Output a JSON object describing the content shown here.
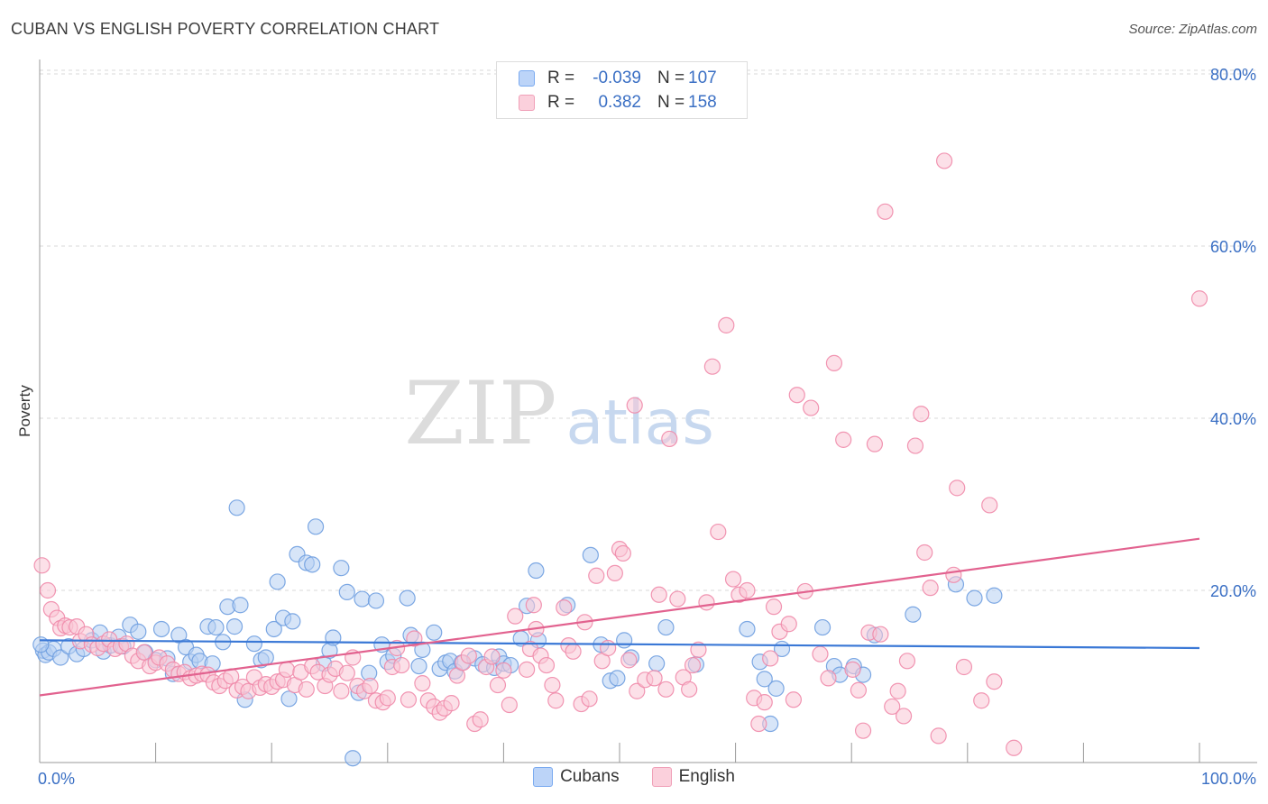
{
  "header": {
    "title": "CUBAN VS ENGLISH POVERTY CORRELATION CHART",
    "source": "Source: ZipAtlas.com"
  },
  "watermark": {
    "part1": "ZIP",
    "part2": "atlas"
  },
  "legend": {
    "rows": [
      {
        "r_label": "R =",
        "r_value": "-0.039",
        "n_label": "N =",
        "n_value": "107",
        "color": "#7aaaf0",
        "fill": "#bcd4f8"
      },
      {
        "r_label": "R =",
        "r_value": "0.382",
        "n_label": "N =",
        "n_value": "158",
        "color": "#f0a0b8",
        "fill": "#fbd0dc"
      }
    ]
  },
  "bottom_legend": {
    "cubans": "Cubans",
    "english": "English"
  },
  "chart_data": {
    "type": "scatter",
    "title": "CUBAN VS ENGLISH POVERTY CORRELATION CHART",
    "ylabel": "Poverty",
    "xlabel": "",
    "xlim": [
      0,
      100
    ],
    "ylim": [
      0,
      82
    ],
    "x_tick_labels": [
      "0.0%",
      "100.0%"
    ],
    "y_ticks": [
      20,
      40,
      60,
      80
    ],
    "y_tick_labels": [
      "20.0%",
      "40.0%",
      "60.0%",
      "80.0%"
    ],
    "grid": true,
    "series": [
      {
        "name": "Cubans",
        "color": "#6f9fe0",
        "fill": "#b7cff3",
        "line_color": "#3a78d6",
        "trend": {
          "x": [
            0,
            100
          ],
          "y": [
            14.2,
            13.3
          ]
        },
        "points": [
          [
            0.3,
            13.0
          ],
          [
            0.5,
            12.5
          ],
          [
            0.8,
            12.8
          ],
          [
            1.2,
            13.2
          ],
          [
            1.8,
            12.2
          ],
          [
            2.5,
            13.5
          ],
          [
            3.2,
            12.6
          ],
          [
            3.8,
            13.2
          ],
          [
            4.5,
            14.2
          ],
          [
            5.2,
            15.1
          ],
          [
            5.5,
            12.9
          ],
          [
            6.1,
            13.6
          ],
          [
            6.8,
            14.6
          ],
          [
            7.2,
            13.5
          ],
          [
            7.8,
            16.0
          ],
          [
            8.5,
            15.2
          ],
          [
            9.1,
            12.8
          ],
          [
            10.0,
            11.9
          ],
          [
            10.5,
            15.5
          ],
          [
            11.0,
            12.1
          ],
          [
            11.5,
            10.3
          ],
          [
            12.0,
            14.8
          ],
          [
            12.6,
            13.4
          ],
          [
            13.0,
            11.7
          ],
          [
            13.5,
            12.5
          ],
          [
            13.8,
            11.8
          ],
          [
            14.5,
            15.8
          ],
          [
            14.9,
            11.5
          ],
          [
            15.2,
            15.7
          ],
          [
            15.8,
            14.0
          ],
          [
            16.2,
            18.1
          ],
          [
            16.8,
            15.8
          ],
          [
            17.0,
            29.6
          ],
          [
            17.3,
            18.3
          ],
          [
            17.7,
            7.3
          ],
          [
            18.5,
            13.8
          ],
          [
            19.1,
            11.9
          ],
          [
            19.5,
            12.2
          ],
          [
            20.2,
            15.5
          ],
          [
            20.5,
            21.0
          ],
          [
            21.0,
            16.8
          ],
          [
            21.5,
            7.4
          ],
          [
            21.8,
            16.4
          ],
          [
            22.2,
            24.2
          ],
          [
            23.0,
            23.2
          ],
          [
            23.5,
            23.0
          ],
          [
            23.8,
            27.4
          ],
          [
            24.5,
            11.5
          ],
          [
            25.0,
            13.0
          ],
          [
            25.3,
            14.5
          ],
          [
            26.0,
            22.6
          ],
          [
            26.5,
            19.8
          ],
          [
            27.0,
            0.5
          ],
          [
            27.5,
            8.1
          ],
          [
            27.8,
            19.0
          ],
          [
            28.4,
            10.4
          ],
          [
            29.0,
            18.8
          ],
          [
            29.5,
            13.7
          ],
          [
            30.0,
            11.7
          ],
          [
            30.5,
            12.4
          ],
          [
            31.7,
            19.1
          ],
          [
            32.0,
            14.8
          ],
          [
            32.7,
            11.2
          ],
          [
            33.0,
            13.1
          ],
          [
            34.0,
            15.1
          ],
          [
            34.5,
            10.9
          ],
          [
            35.0,
            11.6
          ],
          [
            35.4,
            11.8
          ],
          [
            35.8,
            10.6
          ],
          [
            36.4,
            11.6
          ],
          [
            37.5,
            12.1
          ],
          [
            38.2,
            11.4
          ],
          [
            39.2,
            11.0
          ],
          [
            39.6,
            12.3
          ],
          [
            40.0,
            11.5
          ],
          [
            40.6,
            11.3
          ],
          [
            41.5,
            14.4
          ],
          [
            42.0,
            18.2
          ],
          [
            42.8,
            22.3
          ],
          [
            43.0,
            14.2
          ],
          [
            45.5,
            18.3
          ],
          [
            47.5,
            24.1
          ],
          [
            48.4,
            13.7
          ],
          [
            49.2,
            9.5
          ],
          [
            49.8,
            9.8
          ],
          [
            50.4,
            14.2
          ],
          [
            51.0,
            12.2
          ],
          [
            53.2,
            11.5
          ],
          [
            54.0,
            15.7
          ],
          [
            56.6,
            11.4
          ],
          [
            61.0,
            15.5
          ],
          [
            62.1,
            11.7
          ],
          [
            62.5,
            9.7
          ],
          [
            63.0,
            4.5
          ],
          [
            63.5,
            8.6
          ],
          [
            64.0,
            13.2
          ],
          [
            67.5,
            15.7
          ],
          [
            68.5,
            11.2
          ],
          [
            69.0,
            10.2
          ],
          [
            70.2,
            11.2
          ],
          [
            71.0,
            10.2
          ],
          [
            72.0,
            14.8
          ],
          [
            75.3,
            17.2
          ],
          [
            79.0,
            20.7
          ],
          [
            80.6,
            19.1
          ],
          [
            82.3,
            19.4
          ],
          [
            0.1,
            13.7
          ]
        ]
      },
      {
        "name": "English",
        "color": "#f08aaa",
        "fill": "#f9c6d5",
        "line_color": "#e2628f",
        "trend": {
          "x": [
            0,
            100
          ],
          "y": [
            7.8,
            26.0
          ]
        },
        "points": [
          [
            0.2,
            22.9
          ],
          [
            0.7,
            20.0
          ],
          [
            1.0,
            17.8
          ],
          [
            1.5,
            16.8
          ],
          [
            1.8,
            15.6
          ],
          [
            2.2,
            15.9
          ],
          [
            2.6,
            15.7
          ],
          [
            3.2,
            15.8
          ],
          [
            3.5,
            14.1
          ],
          [
            4.0,
            14.9
          ],
          [
            4.5,
            13.7
          ],
          [
            5.0,
            13.3
          ],
          [
            5.5,
            13.8
          ],
          [
            6.0,
            14.3
          ],
          [
            6.5,
            13.2
          ],
          [
            7.0,
            13.5
          ],
          [
            7.5,
            13.8
          ],
          [
            8.0,
            12.4
          ],
          [
            8.5,
            11.8
          ],
          [
            9.0,
            12.8
          ],
          [
            9.5,
            11.2
          ],
          [
            10.0,
            11.6
          ],
          [
            10.3,
            12.2
          ],
          [
            11.0,
            11.5
          ],
          [
            11.5,
            10.8
          ],
          [
            12.0,
            10.3
          ],
          [
            12.5,
            10.5
          ],
          [
            13.0,
            9.8
          ],
          [
            13.5,
            10.1
          ],
          [
            14.0,
            10.3
          ],
          [
            14.5,
            10.2
          ],
          [
            15.0,
            9.3
          ],
          [
            15.5,
            8.9
          ],
          [
            16.0,
            9.5
          ],
          [
            16.5,
            10.0
          ],
          [
            17.0,
            8.4
          ],
          [
            17.5,
            8.8
          ],
          [
            18.0,
            8.3
          ],
          [
            18.5,
            9.9
          ],
          [
            19.0,
            8.7
          ],
          [
            19.5,
            9.1
          ],
          [
            20.0,
            8.8
          ],
          [
            20.5,
            9.4
          ],
          [
            21.0,
            9.6
          ],
          [
            21.3,
            10.8
          ],
          [
            22.0,
            9.0
          ],
          [
            22.5,
            10.5
          ],
          [
            23.0,
            8.5
          ],
          [
            23.5,
            11.2
          ],
          [
            24.0,
            10.5
          ],
          [
            24.6,
            8.9
          ],
          [
            25.0,
            10.2
          ],
          [
            25.5,
            10.9
          ],
          [
            26.0,
            8.3
          ],
          [
            26.5,
            10.4
          ],
          [
            27.0,
            12.2
          ],
          [
            27.4,
            8.9
          ],
          [
            28.0,
            8.3
          ],
          [
            28.5,
            8.9
          ],
          [
            29.0,
            7.2
          ],
          [
            29.6,
            7.0
          ],
          [
            30.0,
            7.5
          ],
          [
            30.4,
            11.1
          ],
          [
            30.8,
            13.3
          ],
          [
            31.2,
            11.3
          ],
          [
            31.8,
            7.3
          ],
          [
            32.3,
            14.4
          ],
          [
            33.0,
            9.2
          ],
          [
            33.5,
            7.2
          ],
          [
            34.0,
            6.5
          ],
          [
            34.5,
            5.8
          ],
          [
            34.9,
            6.3
          ],
          [
            35.5,
            6.9
          ],
          [
            36.0,
            10.1
          ],
          [
            36.5,
            11.6
          ],
          [
            37.0,
            12.4
          ],
          [
            37.5,
            4.5
          ],
          [
            38.0,
            5.0
          ],
          [
            38.5,
            11.1
          ],
          [
            39.0,
            12.3
          ],
          [
            39.5,
            9.0
          ],
          [
            40.0,
            10.7
          ],
          [
            40.5,
            6.7
          ],
          [
            41.0,
            17.0
          ],
          [
            42.0,
            10.8
          ],
          [
            42.3,
            13.2
          ],
          [
            42.6,
            18.3
          ],
          [
            42.8,
            15.5
          ],
          [
            43.2,
            12.4
          ],
          [
            43.7,
            11.3
          ],
          [
            44.2,
            9.0
          ],
          [
            44.5,
            7.2
          ],
          [
            45.2,
            18.0
          ],
          [
            45.6,
            13.6
          ],
          [
            46.0,
            12.9
          ],
          [
            46.7,
            6.8
          ],
          [
            47.0,
            16.3
          ],
          [
            47.4,
            7.4
          ],
          [
            48.0,
            21.7
          ],
          [
            48.5,
            11.8
          ],
          [
            49.0,
            13.3
          ],
          [
            49.6,
            22.0
          ],
          [
            50.0,
            24.8
          ],
          [
            50.3,
            24.3
          ],
          [
            50.8,
            11.9
          ],
          [
            51.3,
            41.5
          ],
          [
            51.5,
            8.3
          ],
          [
            52.2,
            9.6
          ],
          [
            53.0,
            9.8
          ],
          [
            53.4,
            19.5
          ],
          [
            54.0,
            8.5
          ],
          [
            54.3,
            37.6
          ],
          [
            55.0,
            19.0
          ],
          [
            55.5,
            9.9
          ],
          [
            56.0,
            8.5
          ],
          [
            56.3,
            11.3
          ],
          [
            56.8,
            13.1
          ],
          [
            57.5,
            18.6
          ],
          [
            58.0,
            46.0
          ],
          [
            58.5,
            26.8
          ],
          [
            59.2,
            50.8
          ],
          [
            59.8,
            21.3
          ],
          [
            60.3,
            19.5
          ],
          [
            61.0,
            20.0
          ],
          [
            61.6,
            7.5
          ],
          [
            62.0,
            4.5
          ],
          [
            62.5,
            7.0
          ],
          [
            63.0,
            12.1
          ],
          [
            63.3,
            18.1
          ],
          [
            63.8,
            15.2
          ],
          [
            64.6,
            16.1
          ],
          [
            65.0,
            7.3
          ],
          [
            65.3,
            42.7
          ],
          [
            66.0,
            19.9
          ],
          [
            66.5,
            41.2
          ],
          [
            67.3,
            12.6
          ],
          [
            68.0,
            9.8
          ],
          [
            68.5,
            46.4
          ],
          [
            69.3,
            37.5
          ],
          [
            70.1,
            10.8
          ],
          [
            70.6,
            8.4
          ],
          [
            71.0,
            3.7
          ],
          [
            71.5,
            15.1
          ],
          [
            72.0,
            37.0
          ],
          [
            72.5,
            14.9
          ],
          [
            72.9,
            64.0
          ],
          [
            73.5,
            6.5
          ],
          [
            74.0,
            8.3
          ],
          [
            74.5,
            5.4
          ],
          [
            74.8,
            11.8
          ],
          [
            75.5,
            36.8
          ],
          [
            76.0,
            40.5
          ],
          [
            76.3,
            24.4
          ],
          [
            76.8,
            20.3
          ],
          [
            77.5,
            3.1
          ],
          [
            78.0,
            69.9
          ],
          [
            78.8,
            21.8
          ],
          [
            79.1,
            31.9
          ],
          [
            79.7,
            11.1
          ],
          [
            81.2,
            7.2
          ],
          [
            81.9,
            29.9
          ],
          [
            82.3,
            9.4
          ],
          [
            84.0,
            1.7
          ],
          [
            100.0,
            53.9
          ]
        ]
      }
    ]
  }
}
